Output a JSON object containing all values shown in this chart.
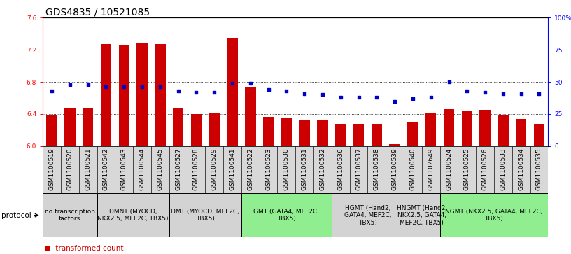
{
  "title": "GDS4835 / 10521085",
  "samples": [
    "GSM1100519",
    "GSM1100520",
    "GSM1100521",
    "GSM1100542",
    "GSM1100543",
    "GSM1100544",
    "GSM1100545",
    "GSM1100527",
    "GSM1100528",
    "GSM1100529",
    "GSM1100541",
    "GSM1100522",
    "GSM1100523",
    "GSM1100530",
    "GSM1100531",
    "GSM1100532",
    "GSM1100536",
    "GSM1100537",
    "GSM1100538",
    "GSM1100539",
    "GSM1100540",
    "GSM1102649",
    "GSM1100524",
    "GSM1100525",
    "GSM1100526",
    "GSM1100533",
    "GSM1100534",
    "GSM1100535"
  ],
  "red_values": [
    6.38,
    6.48,
    6.48,
    7.27,
    7.26,
    7.28,
    7.27,
    6.47,
    6.4,
    6.42,
    7.35,
    6.73,
    6.36,
    6.35,
    6.32,
    6.33,
    6.28,
    6.28,
    6.28,
    6.02,
    6.3,
    6.42,
    6.46,
    6.43,
    6.45,
    6.38,
    6.34,
    6.28
  ],
  "blue_values": [
    43,
    48,
    48,
    46,
    46,
    46,
    46,
    43,
    42,
    42,
    49,
    49,
    44,
    43,
    41,
    40,
    38,
    38,
    38,
    35,
    37,
    38,
    50,
    43,
    42,
    41,
    41,
    41
  ],
  "protocol_groups": [
    {
      "label": "no transcription\nfactors",
      "start": 0,
      "end": 3,
      "color": "#d3d3d3"
    },
    {
      "label": "DMNT (MYOCD,\nNKX2.5, MEF2C, TBX5)",
      "start": 3,
      "end": 7,
      "color": "#d3d3d3"
    },
    {
      "label": "DMT (MYOCD, MEF2C,\nTBX5)",
      "start": 7,
      "end": 11,
      "color": "#d3d3d3"
    },
    {
      "label": "GMT (GATA4, MEF2C,\nTBX5)",
      "start": 11,
      "end": 16,
      "color": "#90EE90"
    },
    {
      "label": "HGMT (Hand2,\nGATA4, MEF2C,\nTBX5)",
      "start": 16,
      "end": 20,
      "color": "#d3d3d3"
    },
    {
      "label": "HNGMT (Hand2,\nNKX2.5, GATA4,\nMEF2C, TBX5)",
      "start": 20,
      "end": 22,
      "color": "#d3d3d3"
    },
    {
      "label": "NGMT (NKX2.5, GATA4, MEF2C,\nTBX5)",
      "start": 22,
      "end": 28,
      "color": "#90EE90"
    }
  ],
  "ylim_left": [
    6.0,
    7.6
  ],
  "ylim_right": [
    0,
    100
  ],
  "yticks_left": [
    6.0,
    6.4,
    6.8,
    7.2,
    7.6
  ],
  "yticks_right": [
    0,
    25,
    50,
    75,
    100
  ],
  "ytick_labels_right": [
    "0",
    "25",
    "50",
    "75",
    "100%"
  ],
  "bar_color": "#cc0000",
  "dot_color": "#0000cc",
  "background_color": "#ffffff",
  "grid_color": "#000000",
  "title_fontsize": 10,
  "tick_fontsize": 6.5,
  "legend_fontsize": 7.5,
  "protocol_fontsize": 6.5
}
